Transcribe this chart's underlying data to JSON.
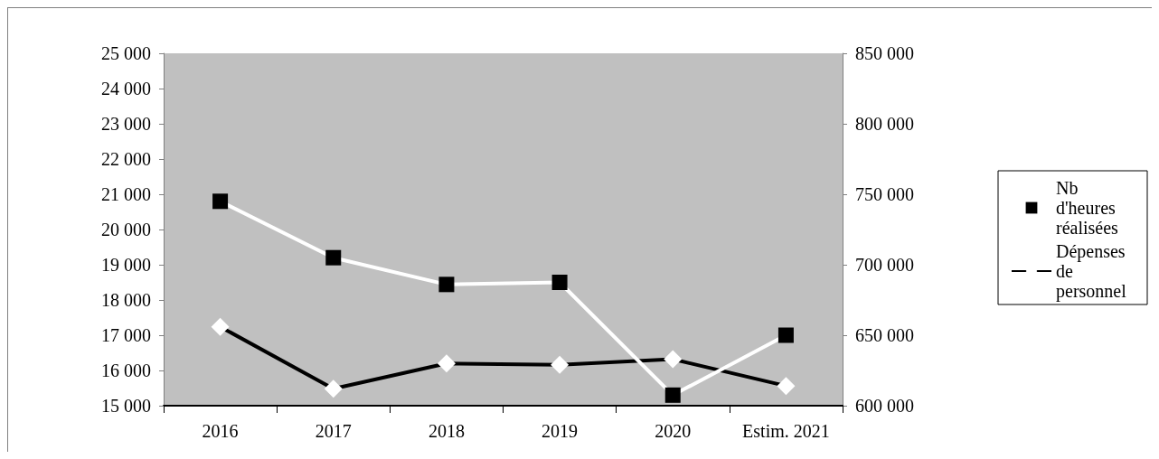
{
  "chart_data": {
    "type": "line",
    "categories": [
      "2016",
      "2017",
      "2018",
      "2019",
      "2020",
      "Estim. 2021"
    ],
    "series": [
      {
        "name": "Nb d'heures réalisées",
        "color": "#ffffff",
        "marker": "square",
        "values": [
          20800,
          19200,
          18440,
          18500,
          15300,
          17000
        ]
      },
      {
        "name": "Dépenses de personnel",
        "color": "#000000",
        "marker": "diamond",
        "axis": "y2",
        "values": [
          656000,
          612000,
          630000,
          629000,
          633000,
          614000
        ]
      }
    ],
    "ylim": [
      15000,
      25000
    ],
    "yticks": [
      15000,
      16000,
      17000,
      18000,
      19000,
      20000,
      21000,
      22000,
      23000,
      24000,
      25000
    ],
    "y2lim": [
      600000,
      850000
    ],
    "y2ticks": [
      600000,
      650000,
      700000,
      750000,
      800000,
      850000
    ],
    "grid": false,
    "legend": "right"
  }
}
